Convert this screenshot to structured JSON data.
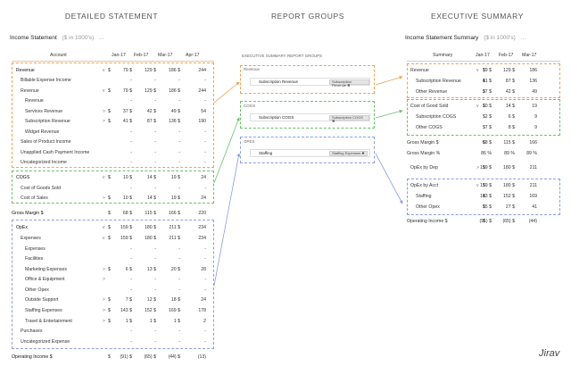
{
  "titles": {
    "detailed": "DETAILED STATEMENT",
    "groups": "REPORT GROUPS",
    "executive": "EXECUTIVE SUMMARY"
  },
  "left": {
    "title": "Income Statement",
    "subtitle": "($ in 1000's)",
    "ellipsis": "...",
    "col_account": "Account",
    "months": [
      "Jan-17",
      "Feb-17",
      "Mar-17",
      "Apr-17"
    ],
    "rows": [
      {
        "label": "Revenue",
        "chev": "v",
        "dollar": "$",
        "v": [
          "79 $",
          "129 $",
          "186 $",
          "244"
        ]
      },
      {
        "label": "Billable Expense Income",
        "v": [
          "-",
          "-",
          "-",
          "-"
        ]
      },
      {
        "label": "Revenue",
        "chev": "v",
        "dollar": "$",
        "v": [
          "79 $",
          "129 $",
          "186 $",
          "244"
        ]
      },
      {
        "label": "Revenue",
        "v": [
          "-",
          "-",
          "-",
          "-"
        ]
      },
      {
        "label": "Services Revenue",
        "chev": ">",
        "dollar": "$",
        "v": [
          "37 $",
          "42 $",
          "49 $",
          "54"
        ]
      },
      {
        "label": "Subscription Revenue",
        "chev": ">",
        "dollar": "$",
        "v": [
          "41 $",
          "87 $",
          "136 $",
          "190"
        ]
      },
      {
        "label": "Widget Revenue",
        "v": [
          "-",
          "-",
          "-",
          "-"
        ]
      },
      {
        "label": "Sales of Product Income",
        "v": [
          "-",
          "-",
          "-",
          "-"
        ]
      },
      {
        "label": "Unapplied Cash Payment Income",
        "v": [
          "-",
          "-",
          "-",
          "-"
        ]
      },
      {
        "label": "Uncategorized Income",
        "v": [
          "-",
          "-",
          "-",
          "-"
        ]
      },
      {
        "label": "COGS",
        "chev": "v",
        "dollar": "$",
        "v": [
          "10 $",
          "14 $",
          "19 $",
          "24"
        ]
      },
      {
        "label": "Cost of Goods Sold",
        "v": [
          "-",
          "-",
          "-",
          "-"
        ]
      },
      {
        "label": "Cost of Sales",
        "chev": ">",
        "dollar": "$",
        "v": [
          "10 $",
          "14 $",
          "19 $",
          "24"
        ]
      },
      {
        "label": "Gross Margin $",
        "dollar": "$",
        "v": [
          "68 $",
          "115 $",
          "166 $",
          "220"
        ]
      },
      {
        "label": "OpEx",
        "chev": "v",
        "dollar": "$",
        "v": [
          "159 $",
          "180 $",
          "211 $",
          "234"
        ]
      },
      {
        "label": "Expenses",
        "chev": "v",
        "dollar": "$",
        "v": [
          "159 $",
          "180 $",
          "211 $",
          "234"
        ]
      },
      {
        "label": "Expenses",
        "v": [
          "-",
          "-",
          "-",
          "-"
        ]
      },
      {
        "label": "Facilities",
        "v": [
          "-",
          "-",
          "-",
          "-"
        ]
      },
      {
        "label": "Marketing Expenses",
        "chev": ">",
        "dollar": "$",
        "v": [
          "6 $",
          "13 $",
          "20 $",
          "28"
        ]
      },
      {
        "label": "Office & Equipment",
        "chev": ">",
        "v": [
          "-",
          "-",
          "-",
          "-"
        ]
      },
      {
        "label": "Other Opex",
        "v": [
          "-",
          "-",
          "-",
          "-"
        ]
      },
      {
        "label": "Outside Support",
        "chev": ">",
        "dollar": "$",
        "v": [
          "7 $",
          "12 $",
          "18 $",
          "24"
        ]
      },
      {
        "label": "Staffing Expenses",
        "chev": ">",
        "dollar": "$",
        "v": [
          "143 $",
          "152 $",
          "169 $",
          "178"
        ]
      },
      {
        "label": "Travel & Entertainment",
        "chev": ">",
        "dollar": "$",
        "v": [
          "1 $",
          "1 $",
          "1 $",
          "2"
        ]
      },
      {
        "label": "Purchases",
        "v": [
          "-",
          "-",
          "-",
          "-"
        ]
      },
      {
        "label": "Uncategorized Expense",
        "v": [
          "-",
          "-",
          "-",
          "-"
        ]
      },
      {
        "label": "Operating Income $",
        "dollar": "$",
        "v": [
          "(91) $",
          "(65) $",
          "(44) $",
          "(13)"
        ]
      }
    ]
  },
  "groups": {
    "heading": "EXECUTIVE SUMMARY REPORT GROUPS",
    "items": [
      {
        "label": "Revenue",
        "item": "Subscription Revenue",
        "tag": "Subscription Revenue ✖"
      },
      {
        "label": "COGS",
        "item": "Subscription COGS",
        "tag": "Subscription COGS ✖"
      },
      {
        "label": "OPEX",
        "item": "Staffing",
        "tag": "Staffing Expenses ✖"
      }
    ]
  },
  "right": {
    "title": "Income Statement Summary",
    "subtitle": "($ in 1000's)",
    "ellipsis": "...",
    "col_summary": "Summary",
    "months": [
      "Jan-17",
      "Feb-17",
      "Mar-17"
    ],
    "rows": [
      {
        "label": "Revenue",
        "chev": "v",
        "dollar": "$",
        "v": [
          "79 $",
          "129 $",
          "186"
        ]
      },
      {
        "label": "Subscription Revenue",
        "dollar": "$",
        "v": [
          "41 $",
          "87 $",
          "136"
        ]
      },
      {
        "label": "Other Revenue",
        "dollar": "$",
        "v": [
          "37 $",
          "42 $",
          "49"
        ]
      },
      {
        "label": "Cost of Good Sold",
        "chev": "v",
        "dollar": "$",
        "v": [
          "10 $",
          "14 $",
          "19"
        ]
      },
      {
        "label": "Subscription COGS",
        "dollar": "$",
        "v": [
          "2 $",
          "6 $",
          "9"
        ]
      },
      {
        "label": "Other COGS",
        "dollar": "$",
        "v": [
          "7 $",
          "8 $",
          "9"
        ]
      },
      {
        "label": "Gross Margin $",
        "dollar": "$",
        "v": [
          "68 $",
          "115 $",
          "166"
        ]
      },
      {
        "label": "Gross Margin %",
        "v": [
          "86 %",
          "89 %",
          "89 %"
        ]
      },
      {
        "label": "OpEx by Dep",
        "chev": ">",
        "dollar": "$",
        "v": [
          "159 $",
          "180 $",
          "211"
        ]
      },
      {
        "label": "OpEx by Acct",
        "chev": "v",
        "dollar": "$",
        "v": [
          "159 $",
          "180 $",
          "211"
        ]
      },
      {
        "label": "Staffing",
        "dollar": "$",
        "v": [
          "143 $",
          "152 $",
          "169"
        ]
      },
      {
        "label": "Other Opex",
        "dollar": "$",
        "v": [
          "15 $",
          "27 $",
          "41"
        ]
      },
      {
        "label": "Operating Income $",
        "dollar": "$",
        "v": [
          "(91) $",
          "(65) $",
          "(44)"
        ]
      }
    ]
  },
  "brand": "Jirav",
  "colors": {
    "orange": "#f0a25a",
    "green": "#6cc26a",
    "blue": "#8a9ee8"
  }
}
